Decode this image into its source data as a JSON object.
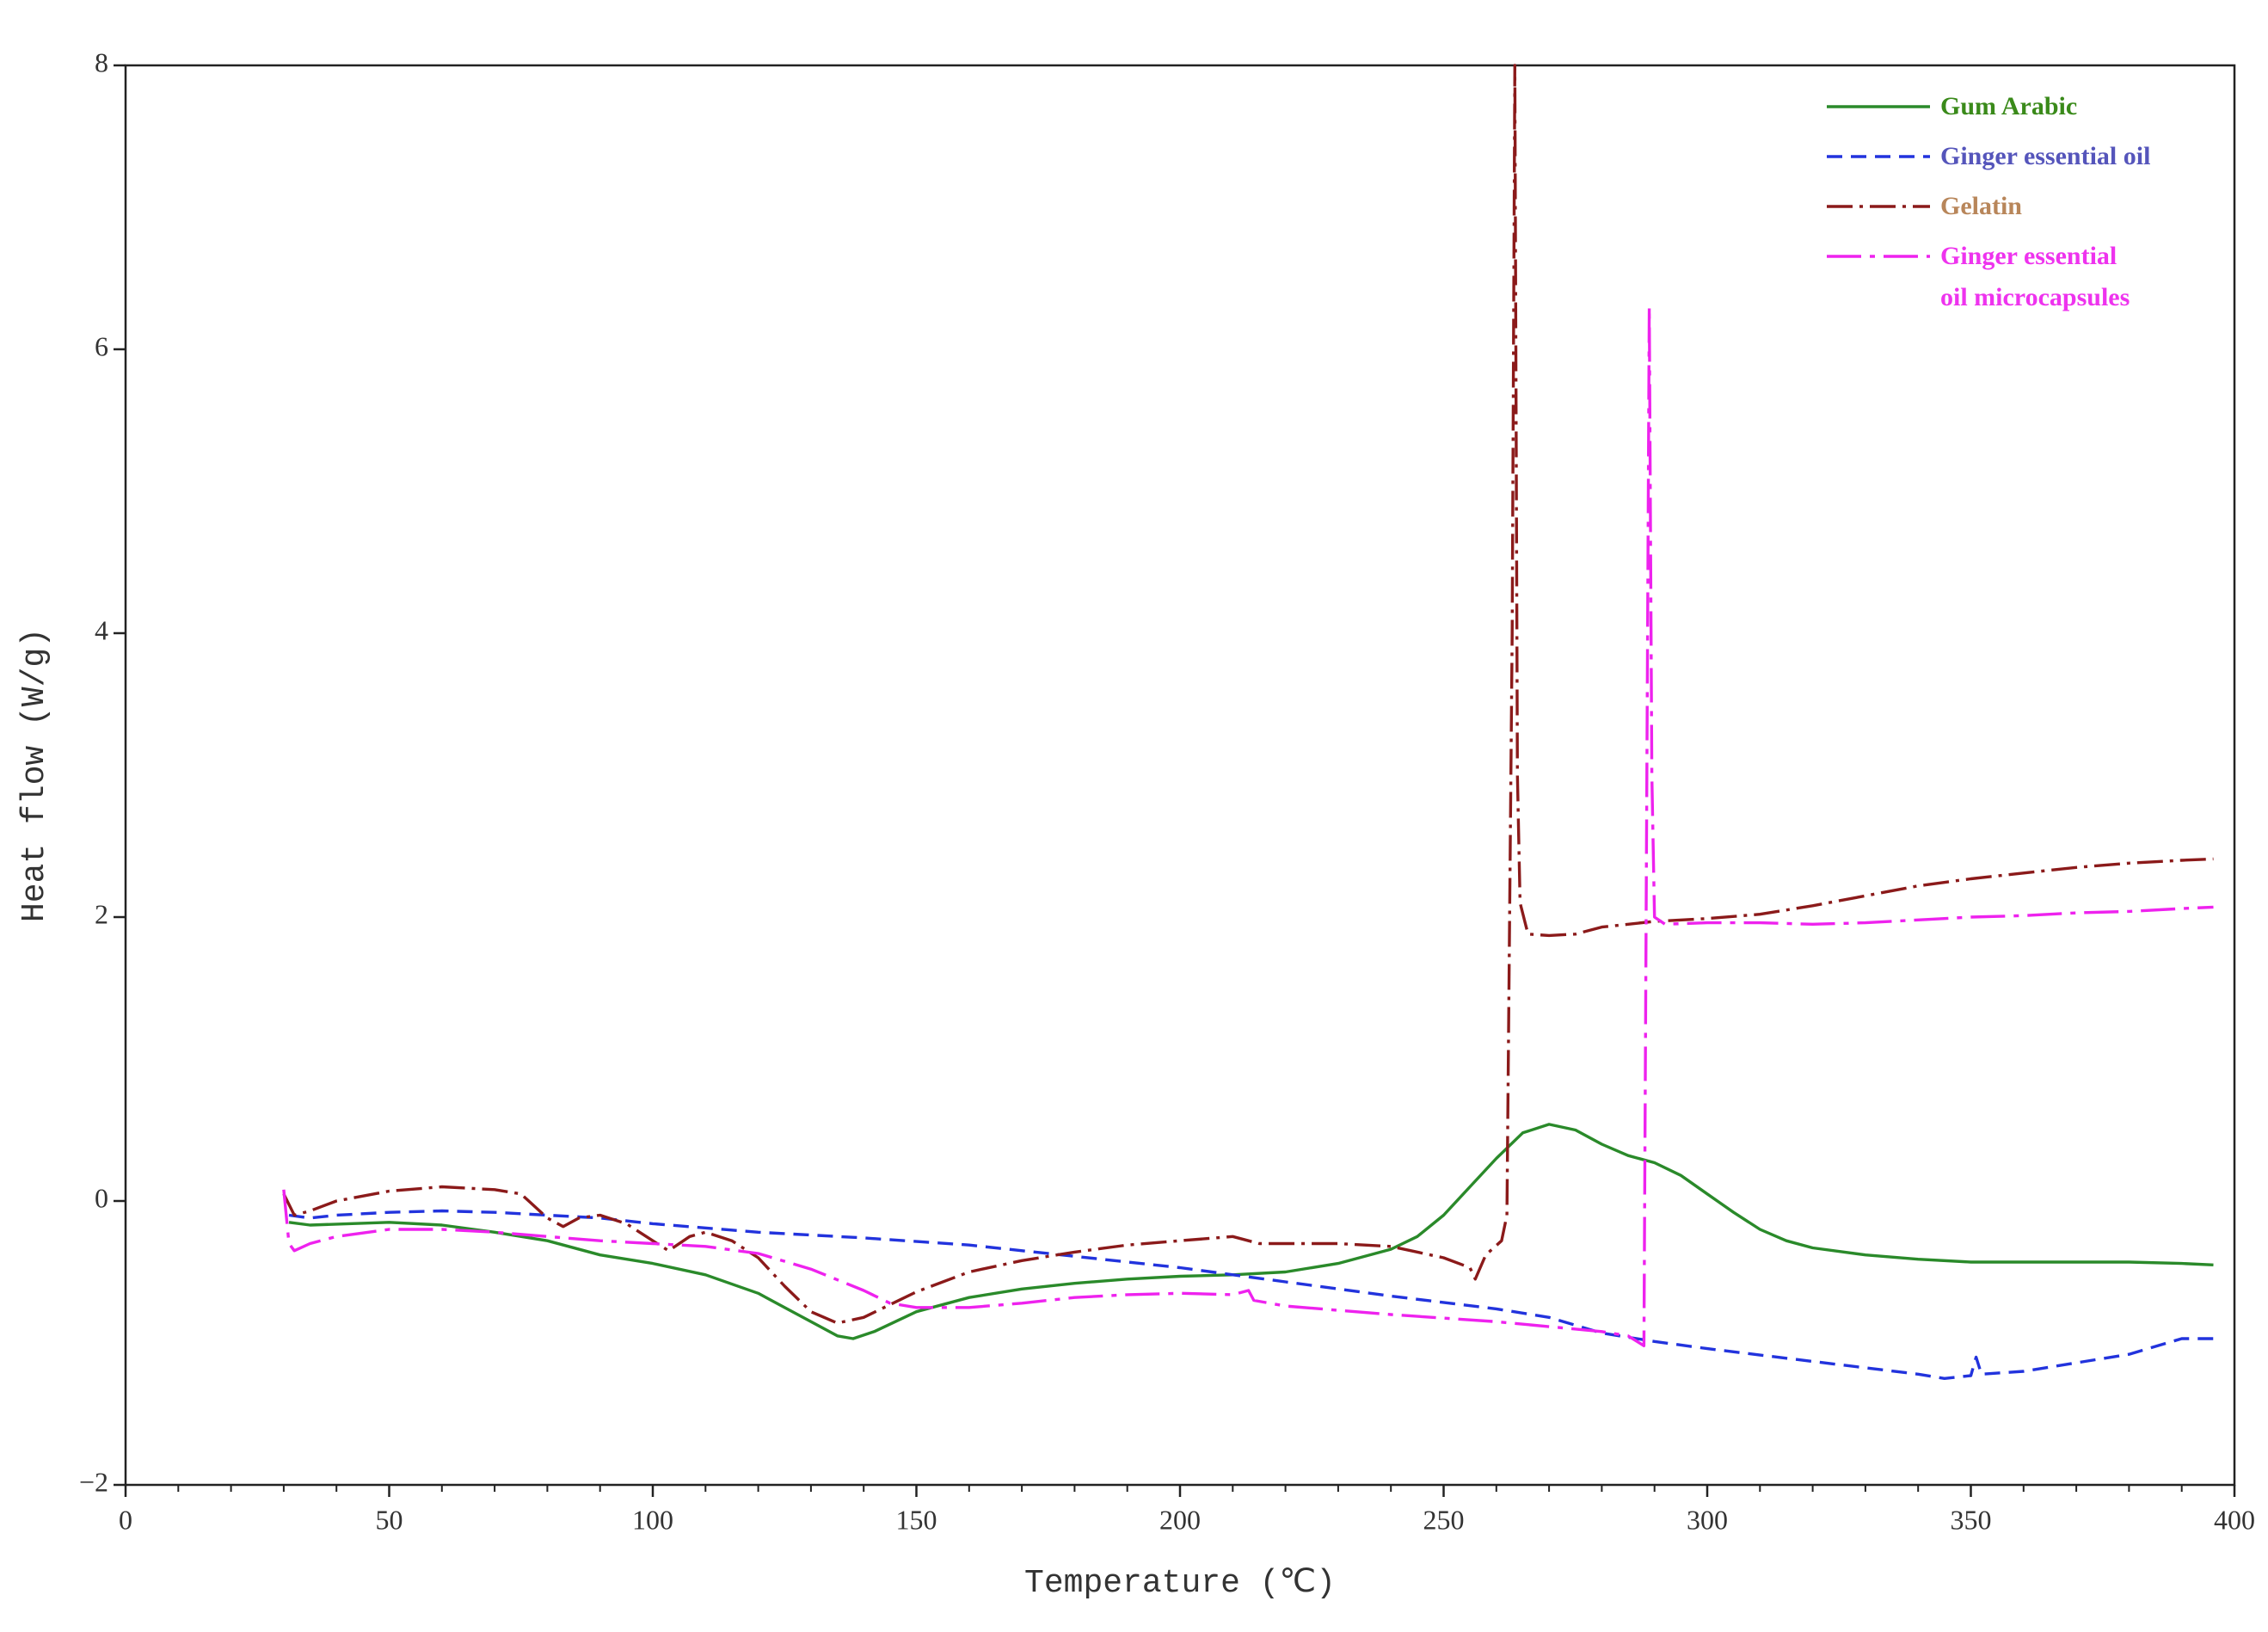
{
  "chart_data": {
    "type": "line",
    "x_label": "Temperature (℃)",
    "y_label": "Heat flow (W/g)",
    "xlim": [
      0,
      400
    ],
    "xticks": [
      0,
      50,
      100,
      150,
      200,
      250,
      300,
      350,
      400
    ],
    "x_minor_ticks": [
      10,
      20,
      30,
      40,
      60,
      70,
      80,
      90,
      110,
      120,
      130,
      140,
      160,
      170,
      180,
      190,
      210,
      220,
      230,
      240,
      260,
      270,
      280,
      290,
      310,
      320,
      330,
      340,
      360,
      370,
      380,
      390
    ],
    "ylim": [
      -2,
      8
    ],
    "yticks": [
      {
        "value": -2,
        "label": "−2"
      },
      0,
      2,
      4,
      6,
      8
    ],
    "legend": "upper right",
    "series": [
      {
        "name": "Gum Arabic",
        "color": "#2a8a2a",
        "label_color": "#3a8a1a",
        "dash": "solid",
        "x": [
          31,
          35,
          50,
          60,
          70,
          80,
          90,
          100,
          110,
          120,
          130,
          135,
          138,
          142,
          150,
          160,
          170,
          180,
          190,
          200,
          210,
          220,
          230,
          240,
          245,
          250,
          255,
          260,
          265,
          270,
          275,
          280,
          285,
          290,
          295,
          300,
          305,
          310,
          315,
          320,
          330,
          340,
          350,
          360,
          370,
          380,
          390,
          396
        ],
        "values": [
          -0.15,
          -0.17,
          -0.15,
          -0.17,
          -0.22,
          -0.28,
          -0.38,
          -0.44,
          -0.52,
          -0.65,
          -0.85,
          -0.95,
          -0.97,
          -0.92,
          -0.78,
          -0.68,
          -0.62,
          -0.58,
          -0.55,
          -0.53,
          -0.52,
          -0.5,
          -0.44,
          -0.34,
          -0.25,
          -0.1,
          0.1,
          0.3,
          0.48,
          0.54,
          0.5,
          0.4,
          0.32,
          0.27,
          0.18,
          0.05,
          -0.08,
          -0.2,
          -0.28,
          -0.33,
          -0.38,
          -0.41,
          -0.43,
          -0.43,
          -0.43,
          -0.43,
          -0.44,
          -0.45
        ]
      },
      {
        "name": "Ginger essential oil",
        "color": "#2233dd",
        "label_color": "#5555bb",
        "dash": "dashed",
        "x": [
          31,
          35,
          40,
          50,
          60,
          70,
          80,
          90,
          100,
          120,
          140,
          160,
          180,
          200,
          220,
          240,
          260,
          270,
          280,
          290,
          300,
          320,
          340,
          345,
          350,
          351,
          352,
          360,
          370,
          380,
          390,
          396
        ],
        "values": [
          -0.1,
          -0.12,
          -0.1,
          -0.08,
          -0.07,
          -0.08,
          -0.1,
          -0.12,
          -0.16,
          -0.22,
          -0.26,
          -0.31,
          -0.39,
          -0.47,
          -0.57,
          -0.67,
          -0.76,
          -0.82,
          -0.93,
          -0.99,
          -1.04,
          -1.13,
          -1.22,
          -1.25,
          -1.23,
          -1.1,
          -1.22,
          -1.2,
          -1.14,
          -1.08,
          -0.97,
          -0.97
        ]
      },
      {
        "name": "Gelatin",
        "color": "#8b1a1a",
        "label_color": "#b8865a",
        "dash": "dashdot",
        "x": [
          30,
          32,
          35,
          40,
          50,
          60,
          70,
          75,
          80,
          83,
          86,
          90,
          95,
          100,
          103,
          107,
          110,
          115,
          120,
          125,
          130,
          135,
          140,
          150,
          160,
          170,
          180,
          190,
          200,
          210,
          215,
          220,
          230,
          240,
          250,
          255,
          256,
          258,
          261,
          262,
          263,
          263.5,
          264,
          264.5,
          266,
          270,
          275,
          280,
          290,
          300,
          310,
          320,
          330,
          340,
          350,
          360,
          370,
          380,
          390,
          396
        ],
        "values": [
          0.05,
          -0.1,
          -0.07,
          0.0,
          0.07,
          0.1,
          0.08,
          0.05,
          -0.12,
          -0.18,
          -0.12,
          -0.1,
          -0.16,
          -0.28,
          -0.35,
          -0.25,
          -0.22,
          -0.28,
          -0.4,
          -0.6,
          -0.78,
          -0.86,
          -0.82,
          -0.64,
          -0.5,
          -0.42,
          -0.36,
          -0.31,
          -0.28,
          -0.25,
          -0.3,
          -0.3,
          -0.3,
          -0.32,
          -0.4,
          -0.47,
          -0.55,
          -0.38,
          -0.28,
          -0.1,
          4,
          8,
          3,
          2.1,
          1.88,
          1.87,
          1.88,
          1.93,
          1.97,
          1.99,
          2.02,
          2.08,
          2.15,
          2.22,
          2.27,
          2.31,
          2.35,
          2.38,
          2.4,
          2.41
        ]
      },
      {
        "name": "Ginger essential\noil microcapsules",
        "color": "#ee22ee",
        "label_color": "#ee33ee",
        "dash": "longdashdot",
        "x": [
          30,
          31,
          32,
          35,
          40,
          50,
          60,
          70,
          80,
          90,
          100,
          110,
          120,
          130,
          140,
          145,
          150,
          160,
          170,
          180,
          190,
          200,
          210,
          213,
          214,
          220,
          240,
          260,
          280,
          285,
          288,
          289,
          289.5,
          290,
          292,
          300,
          310,
          320,
          330,
          340,
          350,
          360,
          370,
          380,
          390,
          396
        ],
        "values": [
          0.08,
          -0.3,
          -0.35,
          -0.3,
          -0.25,
          -0.2,
          -0.2,
          -0.22,
          -0.25,
          -0.28,
          -0.3,
          -0.32,
          -0.37,
          -0.48,
          -0.63,
          -0.72,
          -0.75,
          -0.75,
          -0.72,
          -0.68,
          -0.66,
          -0.65,
          -0.66,
          -0.63,
          -0.7,
          -0.74,
          -0.8,
          -0.85,
          -0.92,
          -0.95,
          -1.02,
          6.3,
          3,
          2.0,
          1.95,
          1.96,
          1.96,
          1.95,
          1.96,
          1.98,
          2.0,
          2.01,
          2.03,
          2.04,
          2.06,
          2.07
        ]
      }
    ]
  }
}
